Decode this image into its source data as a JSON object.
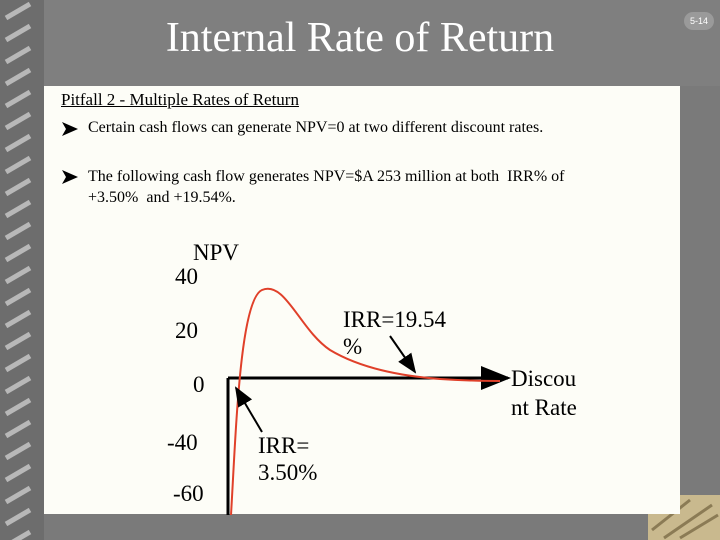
{
  "header": {
    "title": "Internal Rate of Return",
    "page_number": "5-14"
  },
  "body": {
    "subtitle": "Pitfall 2 - Multiple Rates of Return",
    "bullets": [
      [
        "Certain cash flows can generate NPV=0 at two different discount rates."
      ],
      [
        "The following cash flow generates NPV=$A 253 million at both  IRR% of",
        "+3.50%  and +19.54%."
      ]
    ]
  },
  "diagram": {
    "y_axis_label": "NPV",
    "tick_labels": [
      "40",
      "20",
      "0",
      "-40",
      "-60"
    ],
    "x_axis_label": [
      "Discou",
      "nt Rate"
    ],
    "annotations": [
      [
        "IRR=19.54",
        "%"
      ],
      [
        "IRR=",
        "3.50%"
      ]
    ]
  }
}
